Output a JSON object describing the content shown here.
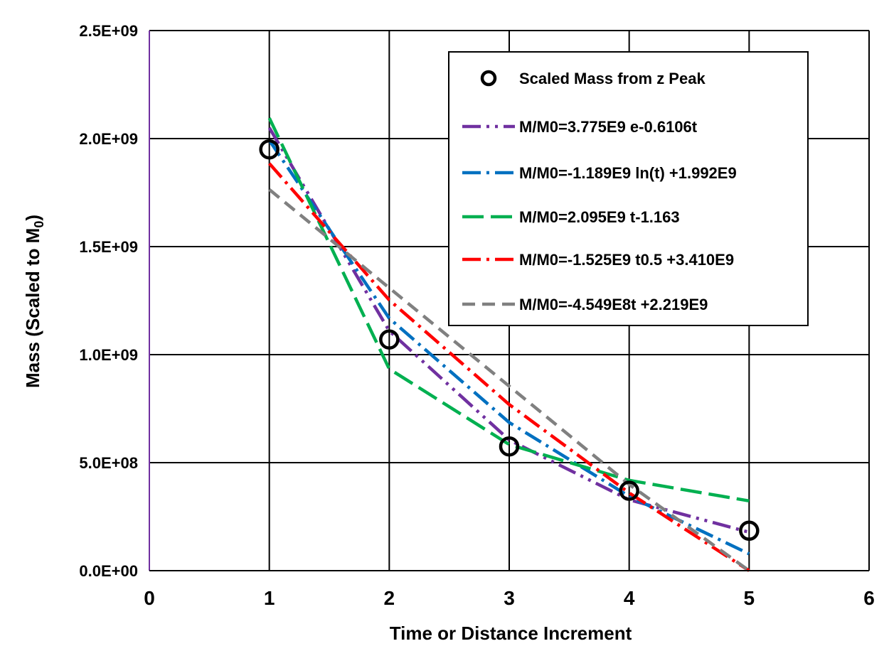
{
  "chart_data": {
    "type": "scatter",
    "xlabel": "Time or Distance Increment",
    "ylabel_main": "Mass (Scaled to M",
    "ylabel_sub": "0",
    "ylabel_close": ")",
    "xlim": [
      0,
      6
    ],
    "ylim": [
      0,
      2500000000
    ],
    "x_ticks": [
      0,
      1,
      2,
      3,
      4,
      5,
      6
    ],
    "x_tick_labels": [
      "0",
      "1",
      "2",
      "3",
      "4",
      "5",
      "6"
    ],
    "y_ticks": [
      0,
      500000000,
      1000000000,
      1500000000,
      2000000000,
      2500000000
    ],
    "y_tick_labels": [
      "0.0E+00",
      "5.0E+08",
      "1.0E+09",
      "1.5E+09",
      "2.0E+09",
      "2.5E+09"
    ],
    "grid": true,
    "legend_position": "top-right",
    "scatter": {
      "name": "Scaled Mass from z Peak",
      "marker": "open-circle",
      "color": "#000000",
      "x": [
        1,
        2,
        3,
        4,
        5
      ],
      "y": [
        1950000000,
        1070000000,
        575000000,
        370000000,
        185000000
      ]
    },
    "series": [
      {
        "name": "M/M0=3.775E9 e-0.6106t",
        "color": "#7030A0",
        "dash": "dash-dot-dot",
        "x": [
          1,
          2,
          3,
          4,
          5
        ],
        "y": [
          2050000000,
          1110000000,
          605000000,
          328000000,
          178000000
        ]
      },
      {
        "name": "M/M0=-1.189E9 ln(t) +1.992E9",
        "color": "#0070C0",
        "dash": "dash-dot",
        "x": [
          1,
          2,
          3,
          4,
          5
        ],
        "y": [
          1992000000,
          1168000000,
          686000000,
          344000000,
          78000000
        ]
      },
      {
        "name": "M/M0=2.095E9 t-1.163",
        "color": "#00B050",
        "dash": "long-dash",
        "x": [
          1,
          2,
          3,
          4,
          5
        ],
        "y": [
          2095000000,
          934000000,
          584000000,
          418000000,
          323000000
        ]
      },
      {
        "name": "M/M0=-1.525E9 t0.5 +3.410E9",
        "color": "#FF0000",
        "dash": "dash-dot",
        "x": [
          1,
          2,
          3,
          4,
          5
        ],
        "y": [
          1885000000,
          1253000000,
          769000000,
          360000000,
          0
        ]
      },
      {
        "name": "M/M0=-4.549E8t +2.219E9",
        "color": "#808080",
        "dash": "dash",
        "x": [
          1,
          2,
          3,
          4,
          5
        ],
        "y": [
          1764000000,
          1309000000,
          854000000,
          399000000,
          0
        ]
      }
    ]
  }
}
